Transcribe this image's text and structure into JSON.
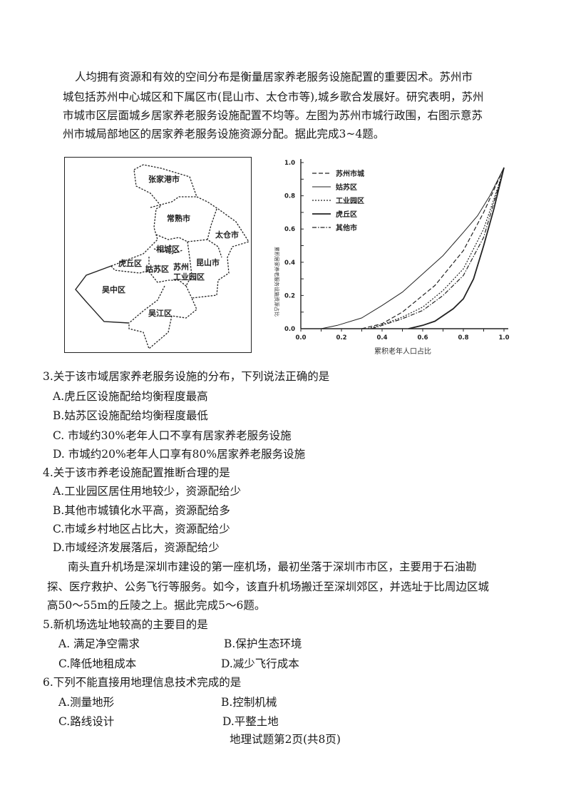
{
  "intro": {
    "lines": [
      "人均拥有资源和有效的空间分布是衡量居家养老服务设施配置的重要因术。苏州市",
      "城包括苏州中心城区和下属区市(昆山市、太仓市等),城乡歌合发展好。研究表明，苏州",
      "市城市区层面城乡居家养老服务设施配置不均等。左图为苏州市城行政围，右图示意苏",
      "州市城局部地区的居家养老服务设施资源分配。据此完成3~4题。"
    ]
  },
  "map": {
    "labels": [
      "张家港市",
      "常熟市",
      "太仓市",
      "相城区",
      "虎丘区",
      "姑苏区",
      "苏州",
      "工业园区",
      "昆山市",
      "吴中区",
      "吴江区"
    ]
  },
  "chart_data": {
    "type": "line",
    "xlabel": "累积老年人口占比",
    "ylabel": "累积居家养老服务设施资源占比",
    "xlim": [
      0,
      1
    ],
    "ylim": [
      0,
      1
    ],
    "xticks": [
      "0.0",
      "0.2",
      "0.4",
      "0.6",
      "0.8",
      "1.0"
    ],
    "yticks": [
      "0.0",
      "0.2",
      "0.4",
      "0.6",
      "0.8",
      "1.0"
    ],
    "legend_position": "top-left",
    "grid": false,
    "series": [
      {
        "name": "苏州市城",
        "style": "dashed",
        "x": [
          0.3,
          0.4,
          0.5,
          0.6,
          0.66,
          0.8,
          0.9,
          1.0
        ],
        "y": [
          0,
          0.03,
          0.1,
          0.2,
          0.26,
          0.47,
          0.7,
          0.97
        ]
      },
      {
        "name": "姑苏区",
        "style": "solid",
        "x": [
          0.1,
          0.18,
          0.3,
          0.4,
          0.5,
          0.6,
          0.7,
          0.8,
          0.87,
          0.93,
          1.0
        ],
        "y": [
          0,
          0.02,
          0.065,
          0.14,
          0.22,
          0.33,
          0.44,
          0.58,
          0.68,
          0.8,
          0.97
        ]
      },
      {
        "name": "工业园区",
        "style": "dotted",
        "x": [
          0.33,
          0.4,
          0.5,
          0.6,
          0.7,
          0.8,
          0.9,
          0.97,
          1.0
        ],
        "y": [
          0,
          0.025,
          0.07,
          0.13,
          0.23,
          0.36,
          0.6,
          0.85,
          0.97
        ]
      },
      {
        "name": "虎丘区",
        "style": "solid-thick",
        "x": [
          0.53,
          0.6,
          0.66,
          0.75,
          0.8,
          0.85,
          0.9,
          0.95,
          1.0
        ],
        "y": [
          0,
          0.02,
          0.045,
          0.12,
          0.18,
          0.3,
          0.5,
          0.72,
          0.97
        ]
      },
      {
        "name": "其他市",
        "style": "dashdot",
        "x": [
          0.35,
          0.5,
          0.6,
          0.7,
          0.8,
          0.9,
          0.96,
          1.0
        ],
        "y": [
          0,
          0.06,
          0.11,
          0.2,
          0.32,
          0.55,
          0.8,
          0.97
        ]
      }
    ]
  },
  "q3": {
    "stem": "3.关于该市域居家养老服务设施的分布，下列说法正确的是",
    "options": [
      "A.虎丘区设施配给均衡程度最高",
      "B.姑苏区设施配给均衡程度最低",
      "C. 市域约30%老年人口不享有居家养老服务设施",
      "D. 市城约20%老年人口享有80%居家养老服务设施"
    ]
  },
  "q4": {
    "stem": "4.关于该市养老设施配置推断合理的是",
    "options": [
      "A.工业园区居住用地较少，资源配给少",
      "B.其他市城镇化水平高，资源配给多",
      "C.市域乡村地区占比大，资源配给少",
      "D.市域经济发展落后，资源配给少"
    ]
  },
  "intro2": {
    "lines": [
      "南头直升机场是深圳市建设的第一座机场，最初坐落于深圳市市区，主要用于石油勘",
      "探、医疗救护、公务飞行等服务。如今，该直升机场搬迁至深圳郊区，并选址于比周边区城",
      "高50～55m的丘陵之上。据此完成5～6题。"
    ]
  },
  "q5": {
    "stem": "5.新机场选址地较高的主要目的是",
    "options": [
      "A. 满足净空需求",
      "B.保护生态环境",
      "C.降低地租成本",
      "D.减少飞行成本"
    ]
  },
  "q6": {
    "stem": "6.下列不能直接用地理信息技术完成的是",
    "options": [
      "A.测量地形",
      "B.控制机械",
      "C.路线设计",
      "D.平整土地"
    ]
  },
  "footer": "地理试题第2页(共8页)"
}
